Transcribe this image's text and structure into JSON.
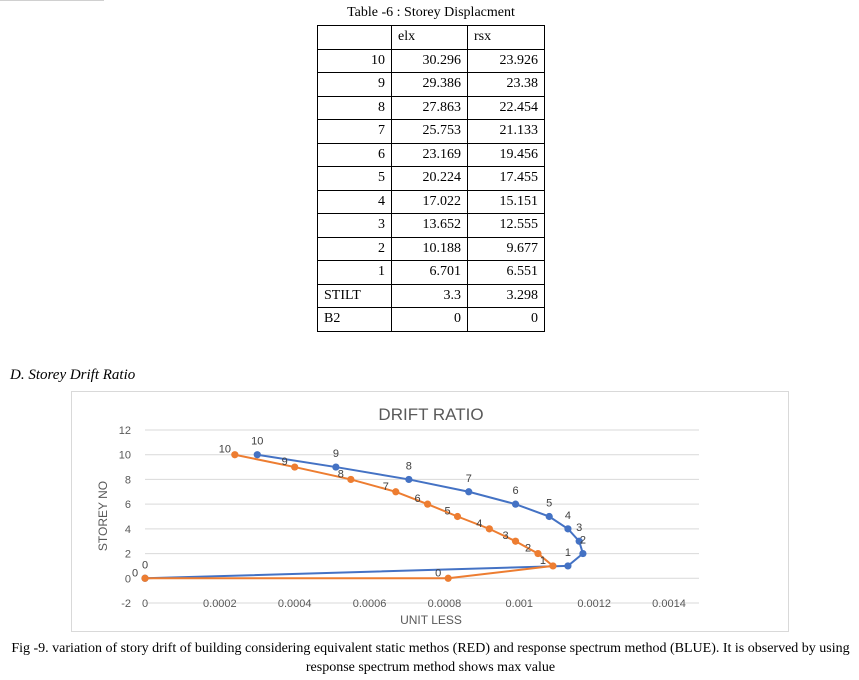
{
  "table": {
    "title": "Table -6 : Storey Displacment",
    "headers": [
      "",
      "elx",
      "rsx"
    ],
    "rows": [
      {
        "storey": "10",
        "elx": "30.296",
        "rsx": "23.926"
      },
      {
        "storey": "9",
        "elx": "29.386",
        "rsx": "23.38"
      },
      {
        "storey": "8",
        "elx": "27.863",
        "rsx": "22.454"
      },
      {
        "storey": "7",
        "elx": "25.753",
        "rsx": "21.133"
      },
      {
        "storey": "6",
        "elx": "23.169",
        "rsx": "19.456"
      },
      {
        "storey": "5",
        "elx": "20.224",
        "rsx": "17.455"
      },
      {
        "storey": "4",
        "elx": "17.022",
        "rsx": "15.151"
      },
      {
        "storey": "3",
        "elx": "13.652",
        "rsx": "12.555"
      },
      {
        "storey": "2",
        "elx": "10.188",
        "rsx": "9.677"
      },
      {
        "storey": "1",
        "elx": "6.701",
        "rsx": "6.551"
      },
      {
        "storey": "STILT",
        "elx": "3.3",
        "rsx": "3.298"
      },
      {
        "storey": "B2",
        "elx": "0",
        "rsx": "0"
      }
    ]
  },
  "section": {
    "heading": "D.   Storey Drift Ratio"
  },
  "chart_data": {
    "type": "scatter",
    "title": "DRIFT RATIO",
    "xlabel": "UNIT LESS",
    "ylabel": "STOREY NO",
    "xlim": [
      0,
      0.0014
    ],
    "ylim": [
      -2,
      12
    ],
    "x_ticks": [
      "0",
      "0.0002",
      "0.0004",
      "0.0006",
      "0.0008",
      "0.001",
      "0.0012",
      "0.0014"
    ],
    "y_ticks": [
      "-2",
      "0",
      "2",
      "4",
      "6",
      "8",
      "10",
      "12"
    ],
    "grid": true,
    "series": [
      {
        "color": "#4472c4",
        "points": [
          {
            "x": 0.0,
            "y": 0,
            "label": "0"
          },
          {
            "x": 0.00113,
            "y": 1,
            "label": "1"
          },
          {
            "x": 0.00117,
            "y": 2,
            "label": "2"
          },
          {
            "x": 0.00116,
            "y": 3,
            "label": "3"
          },
          {
            "x": 0.00113,
            "y": 4,
            "label": "4"
          },
          {
            "x": 0.00108,
            "y": 5,
            "label": "5"
          },
          {
            "x": 0.00099,
            "y": 6,
            "label": "6"
          },
          {
            "x": 0.000865,
            "y": 7,
            "label": "7"
          },
          {
            "x": 0.000705,
            "y": 8,
            "label": "8"
          },
          {
            "x": 0.00051,
            "y": 9,
            "label": "9"
          },
          {
            "x": 0.0003,
            "y": 10,
            "label": "10"
          }
        ]
      },
      {
        "color": "#ed7d31",
        "points": [
          {
            "x": 0.0,
            "y": 0,
            "label": "0"
          },
          {
            "x": 0.00081,
            "y": 0,
            "label": "0"
          },
          {
            "x": 0.00109,
            "y": 1,
            "label": "1"
          },
          {
            "x": 0.00105,
            "y": 2,
            "label": "2"
          },
          {
            "x": 0.00099,
            "y": 3,
            "label": "3"
          },
          {
            "x": 0.00092,
            "y": 4,
            "label": "4"
          },
          {
            "x": 0.000835,
            "y": 5,
            "label": "5"
          },
          {
            "x": 0.000755,
            "y": 6,
            "label": "6"
          },
          {
            "x": 0.00067,
            "y": 7,
            "label": "7"
          },
          {
            "x": 0.00055,
            "y": 8,
            "label": "8"
          },
          {
            "x": 0.0004,
            "y": 9,
            "label": "9"
          },
          {
            "x": 0.00024,
            "y": 10,
            "label": "10"
          }
        ]
      }
    ]
  },
  "caption": {
    "text": "Fig -9. variation of story drift of building considering equivalent static methos (RED) and response spectrum  method (BLUE). It is observed by using response spectrum method shows max value"
  }
}
